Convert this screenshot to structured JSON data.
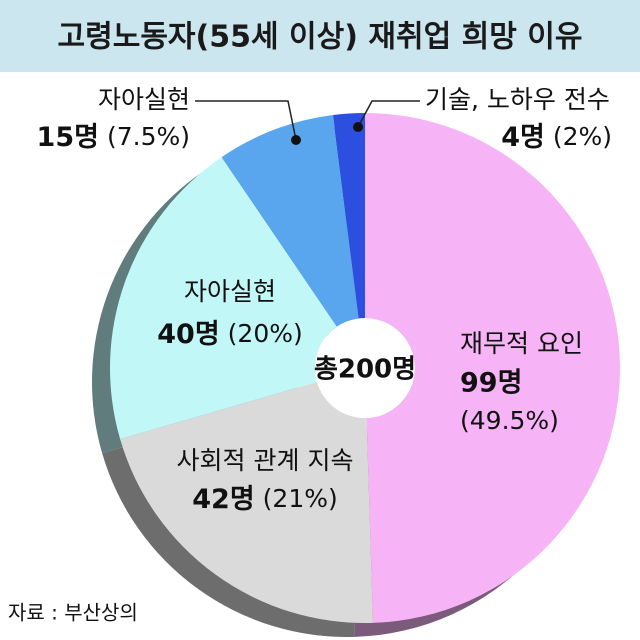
{
  "chart_data": {
    "type": "donut",
    "title": "고령노동자(55세 이상) 재취업 희망 이유",
    "categories": [
      "재무적 요인",
      "사회적 관계 지속",
      "자아실현",
      "자아실현",
      "기술, 노하우 전수"
    ],
    "values": [
      99,
      42,
      40,
      15,
      4
    ],
    "value_labels": [
      "99명",
      "42명",
      "40명",
      "15명",
      "4명"
    ],
    "percent_labels": [
      "(49.5%)",
      "(21%)",
      "(20%)",
      "(7.5%)",
      "(2%)"
    ],
    "colors": [
      "#f6b4f6",
      "#dadada",
      "#c2f7f7",
      "#5aa6ee",
      "#2d4fe0"
    ],
    "center_label": "총200명",
    "source": "자료 : 부산상의"
  }
}
